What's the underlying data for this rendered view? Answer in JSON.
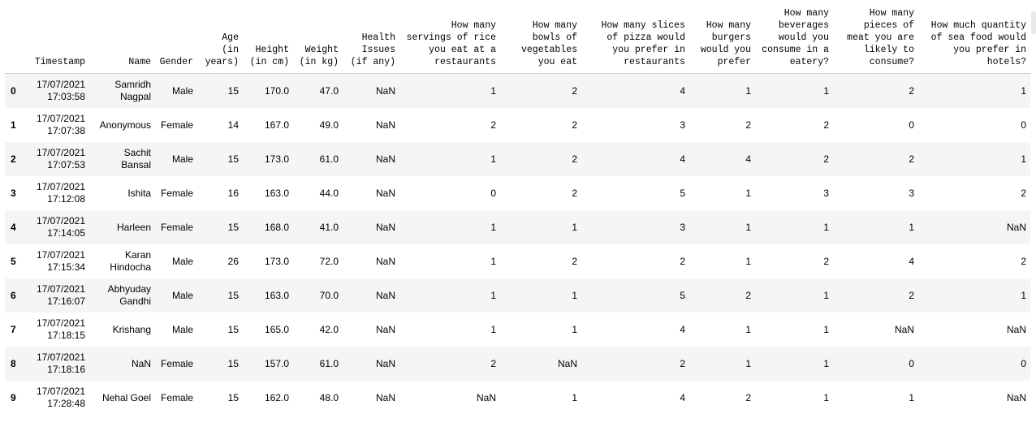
{
  "table": {
    "columns": [
      "",
      "Timestamp",
      "Name",
      "Gender",
      "Age (in years)",
      "Height (in cm)",
      "Weight (in kg)",
      "Health Issues (if any)",
      "How many servings of rice you eat at a restaurants",
      "How many bowls of vegetables you eat",
      "How many slices of pizza would you prefer in restaurants",
      "How many burgers would you prefer",
      "How many beverages would you consume in a eatery?",
      "How many pieces of meat you are likely to consume?",
      "How much quantity of sea food would you prefer in hotels?"
    ],
    "rows": [
      [
        "0",
        "17/07/2021 17:03:58",
        "Samridh Nagpal",
        "Male",
        "15",
        "170.0",
        "47.0",
        "NaN",
        "1",
        "2",
        "4",
        "1",
        "1",
        "2",
        "1"
      ],
      [
        "1",
        "17/07/2021 17:07:38",
        "Anonymous",
        "Female",
        "14",
        "167.0",
        "49.0",
        "NaN",
        "2",
        "2",
        "3",
        "2",
        "2",
        "0",
        "0"
      ],
      [
        "2",
        "17/07/2021 17:07:53",
        "Sachit Bansal",
        "Male",
        "15",
        "173.0",
        "61.0",
        "NaN",
        "1",
        "2",
        "4",
        "4",
        "2",
        "2",
        "1"
      ],
      [
        "3",
        "17/07/2021 17:12:08",
        "Ishita",
        "Female",
        "16",
        "163.0",
        "44.0",
        "NaN",
        "0",
        "2",
        "5",
        "1",
        "3",
        "3",
        "2"
      ],
      [
        "4",
        "17/07/2021 17:14:05",
        "Harleen",
        "Female",
        "15",
        "168.0",
        "41.0",
        "NaN",
        "1",
        "1",
        "3",
        "1",
        "1",
        "1",
        "NaN"
      ],
      [
        "5",
        "17/07/2021 17:15:34",
        "Karan Hindocha",
        "Male",
        "26",
        "173.0",
        "72.0",
        "NaN",
        "1",
        "2",
        "2",
        "1",
        "2",
        "4",
        "2"
      ],
      [
        "6",
        "17/07/2021 17:16:07",
        "Abhyuday Gandhi",
        "Male",
        "15",
        "163.0",
        "70.0",
        "NaN",
        "1",
        "1",
        "5",
        "2",
        "1",
        "2",
        "1"
      ],
      [
        "7",
        "17/07/2021 17:18:15",
        "Krishang",
        "Male",
        "15",
        "165.0",
        "42.0",
        "NaN",
        "1",
        "1",
        "4",
        "1",
        "1",
        "NaN",
        "NaN"
      ],
      [
        "8",
        "17/07/2021 17:18:16",
        "NaN",
        "Female",
        "15",
        "157.0",
        "61.0",
        "NaN",
        "2",
        "NaN",
        "2",
        "1",
        "1",
        "0",
        "0"
      ],
      [
        "9",
        "17/07/2021 17:28:48",
        "Nehal Goel",
        "Female",
        "15",
        "162.0",
        "48.0",
        "NaN",
        "NaN",
        "1",
        "4",
        "2",
        "1",
        "1",
        "NaN"
      ]
    ]
  }
}
